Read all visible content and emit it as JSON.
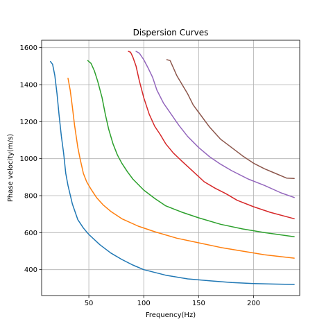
{
  "chart_data": {
    "type": "line",
    "title": "Dispersion Curves",
    "xlabel": "Frequency(Hz)",
    "ylabel": "Phase velocity(m/s)",
    "xlim": [
      7,
      242
    ],
    "ylim": [
      260,
      1640
    ],
    "xticks": [
      50,
      100,
      150,
      200
    ],
    "yticks": [
      400,
      600,
      800,
      1000,
      1200,
      1400,
      1600
    ],
    "grid": true,
    "series": [
      {
        "color": "#1f77b4",
        "x": [
          15,
          17,
          19,
          21,
          23,
          25,
          27,
          29,
          31,
          35,
          40,
          45,
          50,
          60,
          70,
          80,
          90,
          100,
          120,
          140,
          160,
          180,
          200,
          220,
          237
        ],
        "y": [
          1525,
          1510,
          1450,
          1350,
          1230,
          1120,
          1030,
          920,
          855,
          755,
          670,
          625,
          590,
          535,
          490,
          455,
          425,
          400,
          370,
          350,
          340,
          330,
          325,
          322,
          320
        ]
      },
      {
        "color": "#ff7f0e",
        "x": [
          31,
          33,
          35,
          37,
          40,
          42,
          45,
          48,
          52,
          57,
          63,
          70,
          80,
          95,
          110,
          130,
          150,
          170,
          190,
          210,
          237
        ],
        "y": [
          1435,
          1370,
          1280,
          1180,
          1060,
          1000,
          920,
          875,
          835,
          790,
          750,
          715,
          675,
          635,
          605,
          570,
          545,
          520,
          500,
          480,
          462
        ]
      },
      {
        "color": "#2ca02c",
        "x": [
          49,
          52,
          55,
          58,
          62,
          65,
          68,
          72,
          76,
          80,
          85,
          90,
          95,
          100,
          110,
          120,
          135,
          150,
          170,
          190,
          210,
          237
        ],
        "y": [
          1530,
          1515,
          1475,
          1420,
          1330,
          1240,
          1160,
          1080,
          1020,
          975,
          930,
          890,
          860,
          830,
          785,
          745,
          710,
          680,
          645,
          620,
          600,
          578
        ]
      },
      {
        "color": "#d62728",
        "x": [
          86,
          88,
          90,
          93,
          96,
          100,
          105,
          110,
          115,
          120,
          127,
          135,
          145,
          155,
          165,
          175,
          185,
          200,
          215,
          237
        ],
        "y": [
          1580,
          1575,
          1550,
          1500,
          1420,
          1330,
          1240,
          1175,
          1130,
          1080,
          1030,
          985,
          930,
          875,
          840,
          810,
          775,
          740,
          710,
          675
        ]
      },
      {
        "color": "#9467bd",
        "x": [
          93,
          96,
          100,
          104,
          108,
          112,
          118,
          125,
          132,
          140,
          150,
          160,
          170,
          180,
          195,
          210,
          225,
          237
        ],
        "y": [
          1580,
          1570,
          1535,
          1490,
          1440,
          1370,
          1300,
          1240,
          1180,
          1120,
          1060,
          1010,
          970,
          935,
          890,
          855,
          815,
          790
        ]
      },
      {
        "color": "#8c564b",
        "x": [
          121,
          124,
          127,
          130,
          135,
          140,
          145,
          150,
          160,
          170,
          180,
          190,
          200,
          210,
          220,
          230,
          237
        ],
        "y": [
          1535,
          1530,
          1490,
          1450,
          1400,
          1350,
          1290,
          1250,
          1170,
          1105,
          1060,
          1015,
          975,
          945,
          920,
          895,
          893
        ]
      }
    ]
  }
}
